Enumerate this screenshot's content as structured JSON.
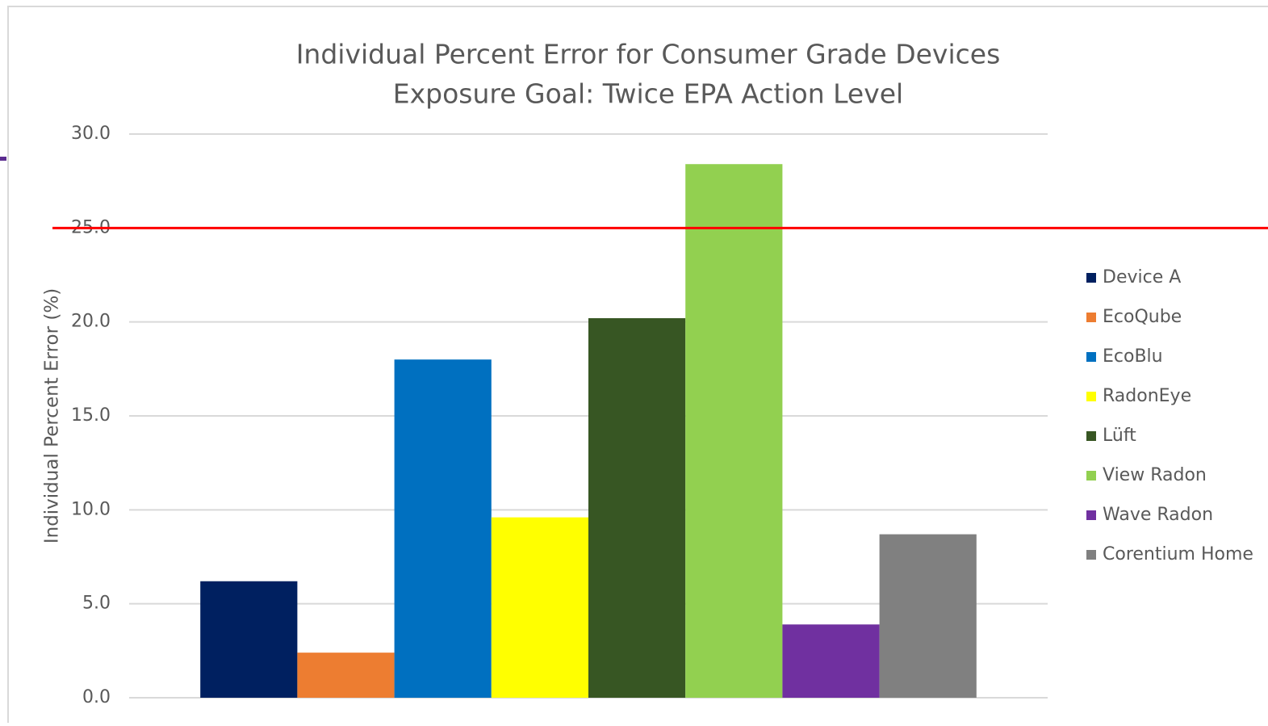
{
  "chart_data": {
    "type": "bar",
    "title": "Individual Percent Error for Consumer Grade Devices",
    "subtitle": "Exposure Goal: Twice EPA Action Level",
    "y_label": "Individual Percent Error (%)",
    "categories": [
      null
    ],
    "series": [
      {
        "name": "Device A",
        "color": "#002060",
        "values": [
          6.2
        ]
      },
      {
        "name": "EcoQube",
        "color": "#ed7d31",
        "values": [
          2.4
        ]
      },
      {
        "name": "EcoBlu",
        "color": "#0070c0",
        "values": [
          18.0
        ]
      },
      {
        "name": "RadonEye",
        "color": "#ffff00",
        "values": [
          9.6
        ]
      },
      {
        "name": "Lüft",
        "color": "#375623",
        "values": [
          20.2
        ]
      },
      {
        "name": "View Radon",
        "color": "#92d050",
        "values": [
          28.4
        ]
      },
      {
        "name": "Wave Radon",
        "color": "#7030a0",
        "values": [
          3.9
        ]
      },
      {
        "name": "Corentium Home",
        "color": "#808080",
        "values": [
          8.7
        ]
      }
    ],
    "ylim": [
      0,
      30
    ],
    "yticks": [
      {
        "value": 0,
        "label": "0.0"
      },
      {
        "value": 5,
        "label": "5.0"
      },
      {
        "value": 10,
        "label": "10.0"
      },
      {
        "value": 15,
        "label": "15.0"
      },
      {
        "value": 20,
        "label": "20.0"
      },
      {
        "value": 25,
        "label": "25.0"
      },
      {
        "value": 30,
        "label": "30.0"
      }
    ],
    "grid": true,
    "legend": "right",
    "reference_line": {
      "value": 25,
      "color": "#ff0000"
    }
  }
}
